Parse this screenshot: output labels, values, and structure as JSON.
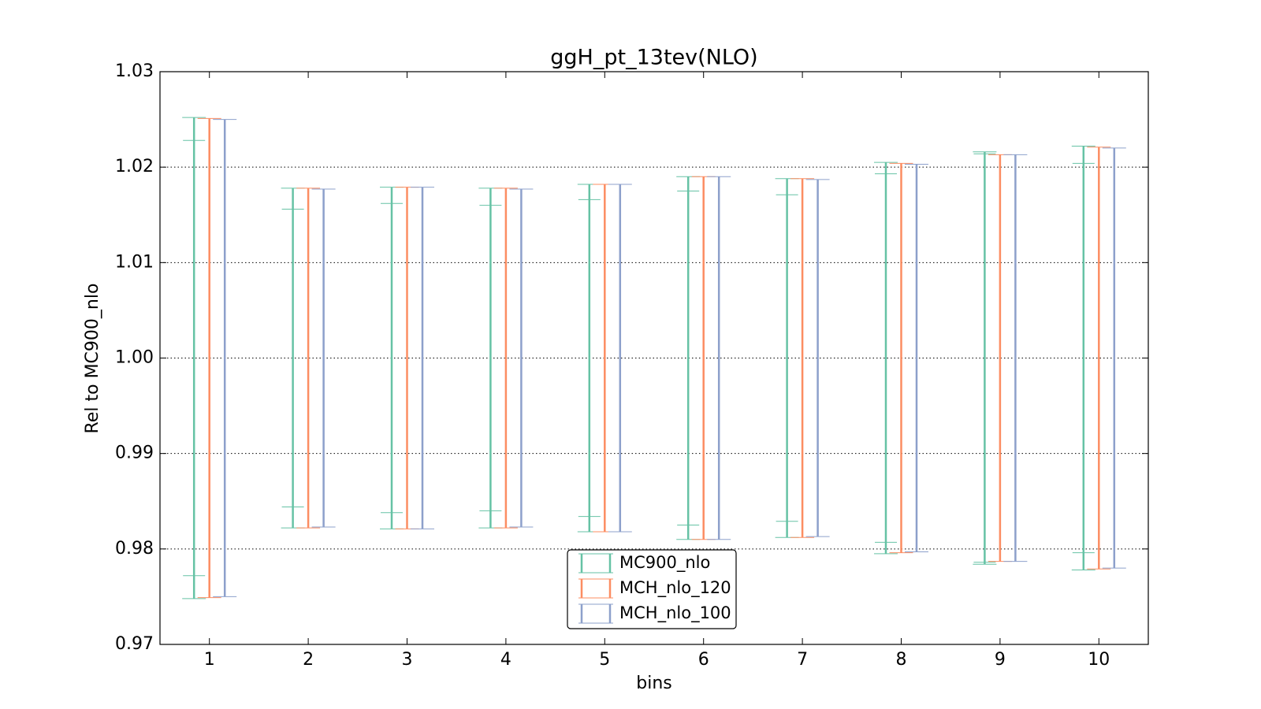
{
  "chart_data": {
    "type": "errorbar",
    "title": "ggH_pt_13tev(NLO)",
    "xlabel": "bins",
    "ylabel": "Rel to MC900_nlo",
    "x": [
      1,
      2,
      3,
      4,
      5,
      6,
      7,
      8,
      9,
      10
    ],
    "xlim": [
      0.5,
      10.5
    ],
    "xticks": [
      1,
      2,
      3,
      4,
      5,
      6,
      7,
      8,
      9,
      10
    ],
    "ylim": [
      0.97,
      1.03
    ],
    "yticks": [
      0.97,
      0.98,
      0.99,
      {
        "value": 1,
        "label": "1.00"
      },
      1.01,
      1.02,
      1.03
    ],
    "grid": true,
    "legend": "lower center",
    "series": [
      {
        "name": "MC900_nlo",
        "color": "#66c2a5",
        "values": [
          1,
          1,
          1,
          1,
          1,
          1,
          1,
          1,
          1,
          1
        ],
        "errors": [
          0.0252,
          0.0178,
          0.0179,
          0.0178,
          0.0182,
          0.019,
          0.0188,
          0.0205,
          0.0216,
          0.0222
        ],
        "inner_errors": [
          0.0228,
          0.0156,
          0.0162,
          0.016,
          0.0166,
          0.0175,
          0.0171,
          0.0193,
          0.0214,
          0.0204
        ]
      },
      {
        "name": "MCH_nlo_120",
        "color": "#fc8d62",
        "values": [
          1,
          1,
          1,
          1,
          1,
          1,
          1,
          1,
          1,
          1
        ],
        "errors": [
          0.0251,
          0.0178,
          0.0179,
          0.0178,
          0.0182,
          0.019,
          0.0188,
          0.0204,
          0.0213,
          0.0221
        ]
      },
      {
        "name": "MCH_nlo_100",
        "color": "#8da0cb",
        "values": [
          1,
          1,
          1,
          1,
          1,
          1,
          1,
          1,
          1,
          1
        ],
        "errors": [
          0.025,
          0.0177,
          0.0179,
          0.0177,
          0.0182,
          0.019,
          0.0187,
          0.0203,
          0.0213,
          0.022
        ]
      }
    ]
  }
}
